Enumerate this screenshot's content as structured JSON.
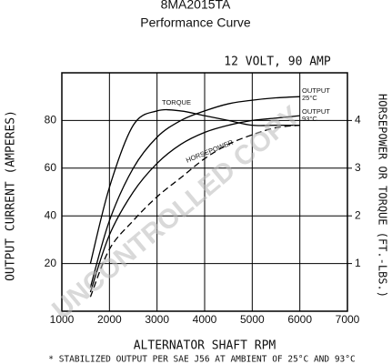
{
  "chart_data": {
    "type": "line",
    "title": "8MA2015TA",
    "subtitle": "Performance Curve",
    "rating": "12 VOLT, 90 AMP",
    "x_label": "ALTERNATOR SHAFT RPM",
    "y_label": "OUTPUT CURRENT (AMPERES)",
    "y2_label": "HORSEPOWER OR TORQUE (FT.-LBS.)",
    "footnote": "* STABILIZED OUTPUT PER SAE J56 AT AMBIENT OF 25°C AND 93°C",
    "watermark": "UNCONTROLLED COPY",
    "xlim": [
      1000,
      7000
    ],
    "xticks": [
      1000,
      2000,
      3000,
      4000,
      5000,
      6000,
      7000
    ],
    "ylim": [
      0,
      100
    ],
    "yticks": [
      20,
      40,
      60,
      80
    ],
    "y2lim": [
      0,
      5
    ],
    "y2ticks": [
      1,
      2,
      3,
      4
    ],
    "grid": true,
    "series": [
      {
        "name": "OUTPUT 25°C",
        "color": "#000000",
        "x": [
          1600,
          2000,
          2500,
          3000,
          3500,
          4000,
          4500,
          5000,
          5500,
          6000
        ],
        "values": [
          10,
          38,
          60,
          73,
          80,
          84,
          87,
          88.5,
          89.5,
          90
        ]
      },
      {
        "name": "OUTPUT 93°C",
        "color": "#000000",
        "x": [
          1600,
          2000,
          2500,
          3000,
          3500,
          4000,
          4500,
          5000,
          5500,
          6000
        ],
        "values": [
          8,
          32,
          50,
          62,
          70,
          75,
          78,
          80,
          81,
          82
        ]
      },
      {
        "name": "TORQUE",
        "color": "#000000",
        "axis": "y2",
        "x": [
          1600,
          2000,
          2500,
          3000,
          3500,
          4000,
          4500,
          5000,
          5500,
          6000
        ],
        "values": [
          1.0,
          2.6,
          3.9,
          4.2,
          4.2,
          4.1,
          4.0,
          3.9,
          3.9,
          3.9
        ]
      },
      {
        "name": "HORSEPOWER",
        "color": "#000000",
        "axis": "y2",
        "dashed": true,
        "x": [
          1600,
          2000,
          2500,
          3000,
          3500,
          4000,
          4500,
          5000,
          5500,
          6000
        ],
        "values": [
          0.3,
          1.3,
          1.9,
          2.4,
          2.8,
          3.2,
          3.5,
          3.7,
          3.85,
          3.9
        ]
      }
    ]
  }
}
